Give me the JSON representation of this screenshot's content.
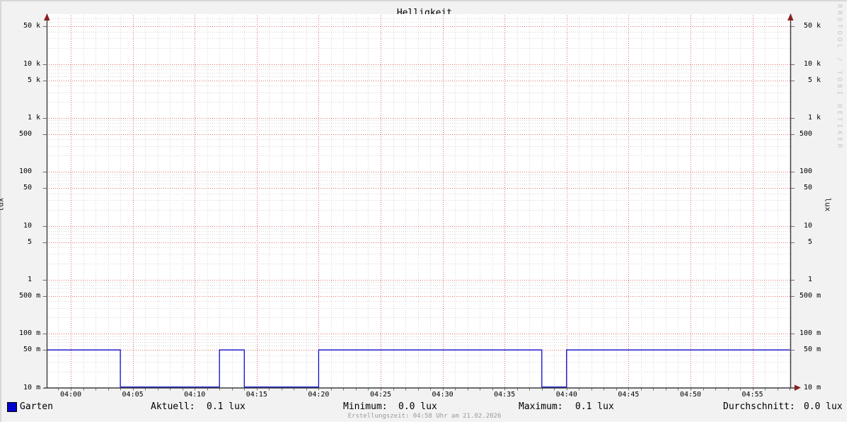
{
  "chart_data": {
    "type": "line",
    "title": "Helligkeit",
    "ylabel": "lux",
    "y_scale": "log",
    "grid": true,
    "x_start": "03:58",
    "x_end": "04:58",
    "x_ticks": [
      "04:00",
      "04:05",
      "04:10",
      "04:15",
      "04:20",
      "04:25",
      "04:30",
      "04:35",
      "04:40",
      "04:45",
      "04:50",
      "04:55"
    ],
    "y_ticks": [
      {
        "value": 50000,
        "label": "50 k"
      },
      {
        "value": 10000,
        "label": "10 k"
      },
      {
        "value": 5000,
        "label": "5 k"
      },
      {
        "value": 1000,
        "label": "1 k"
      },
      {
        "value": 500,
        "label": "500"
      },
      {
        "value": 100,
        "label": "100"
      },
      {
        "value": 50,
        "label": "50"
      },
      {
        "value": 10,
        "label": "10"
      },
      {
        "value": 5,
        "label": "5"
      },
      {
        "value": 1,
        "label": "1"
      },
      {
        "value": 0.5,
        "label": "500 m"
      },
      {
        "value": 0.1,
        "label": "100 m"
      },
      {
        "value": 0.05,
        "label": "50 m"
      },
      {
        "value": 0.01,
        "label": "10 m"
      }
    ],
    "ylim": [
      0.01,
      70000
    ],
    "series": [
      {
        "name": "Garten",
        "color": "#0d0dcc",
        "steps": [
          {
            "time": "03:58",
            "value": 0.05
          },
          {
            "time": "04:04",
            "value": 0.0
          },
          {
            "time": "04:12",
            "value": 0.05
          },
          {
            "time": "04:14",
            "value": 0.0
          },
          {
            "time": "04:20",
            "value": 0.05
          },
          {
            "time": "04:38",
            "value": 0.0
          },
          {
            "time": "04:40",
            "value": 0.05
          }
        ],
        "end_time": "04:58"
      }
    ],
    "legend_position": "bottom"
  },
  "stats": [
    {
      "label": "Aktuell:",
      "value": "0.1 lux"
    },
    {
      "label": "Minimum:",
      "value": "0.0 lux"
    },
    {
      "label": "Maximum:",
      "value": "0.1 lux"
    },
    {
      "label": "Durchschnitt:",
      "value": "0.0 lux"
    }
  ],
  "footer": "Erstellungszeit: 04:58 Uhr am 21.02.2026",
  "watermark": "RRDTOOL / TOBI OETIKER",
  "colors": {
    "background": "#f2f2f2",
    "plot_background": "#ffffff",
    "grid_minor": "#d6d6d6",
    "grid_major": "#e06e6e",
    "axis": "#3d3d3d",
    "arrow": "#8b2020",
    "line": "#0d0dcc",
    "legend_swatch": "#0000cc"
  }
}
